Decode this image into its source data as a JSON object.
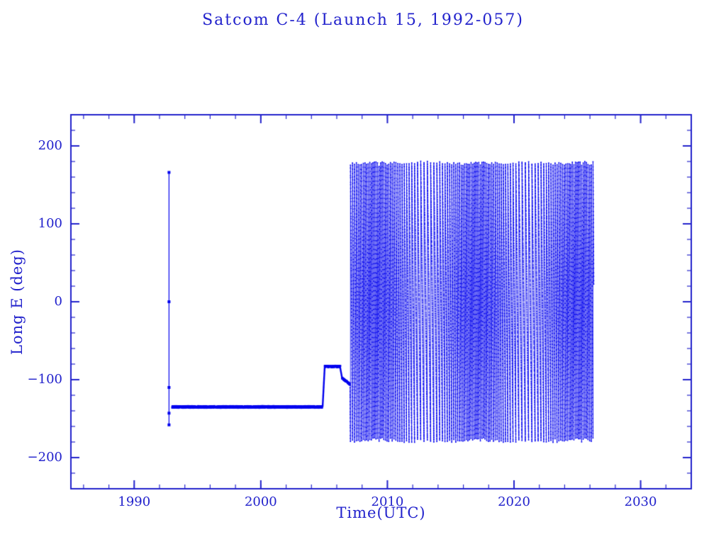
{
  "page": {
    "background": "#ffffff"
  },
  "chart_data": {
    "type": "scatter",
    "title": "Satcom C-4 (Launch 15, 1992-057)",
    "xlabel": "Time(UTC)",
    "ylabel": "Long E (deg)",
    "xlim": [
      1985,
      2034
    ],
    "ylim": [
      -240,
      240
    ],
    "x_ticks": [
      {
        "value": 1990,
        "label": "1990"
      },
      {
        "value": 2000,
        "label": "2000"
      },
      {
        "value": 2010,
        "label": "2010"
      },
      {
        "value": 2020,
        "label": "2020"
      },
      {
        "value": 2030,
        "label": "2030"
      }
    ],
    "y_ticks": [
      {
        "value": -200,
        "label": "−200"
      },
      {
        "value": -100,
        "label": "−100"
      },
      {
        "value": 0,
        "label": "0"
      },
      {
        "value": 100,
        "label": "100"
      },
      {
        "value": 200,
        "label": "200"
      }
    ],
    "x_minor_step": 2,
    "y_minor_step": 20,
    "grid": false,
    "legend": null,
    "colors": {
      "ink": "#2222cc",
      "data": "#0000ee",
      "background": "#ffffff"
    },
    "segments": [
      {
        "name": "launch-transient",
        "kind": "vertical-spike",
        "t": 1992.75,
        "y_min": -158,
        "y_max": 166,
        "marker_points": [
          166,
          0,
          -110,
          -143,
          -158
        ]
      },
      {
        "name": "station-keeping-135W",
        "kind": "steady",
        "t_start": 1993.0,
        "t_end": 2004.85,
        "level": -135,
        "jitter": 1.2
      },
      {
        "name": "relocation-83W",
        "kind": "steady",
        "t_start": 2005.05,
        "t_end": 2006.28,
        "level": -83,
        "jitter": 1.0,
        "ramp_from": -135
      },
      {
        "name": "post-relocation-drift-onset",
        "kind": "steady",
        "t_start": 2006.42,
        "t_end": 2007.05,
        "level": -98,
        "level_end": -106,
        "jitter": 1.0,
        "ramp_from": -83
      },
      {
        "name": "free-drift-circulation",
        "kind": "drift",
        "t_start": 2007.05,
        "t_end": 2026.3,
        "y_min": -180,
        "y_max": 180,
        "start_lon": -106,
        "base_rate_rev_per_year": 6.0,
        "rate_variation": 2.2,
        "rate_period_years": 8.0,
        "sample_step_years": 0.002
      }
    ]
  }
}
